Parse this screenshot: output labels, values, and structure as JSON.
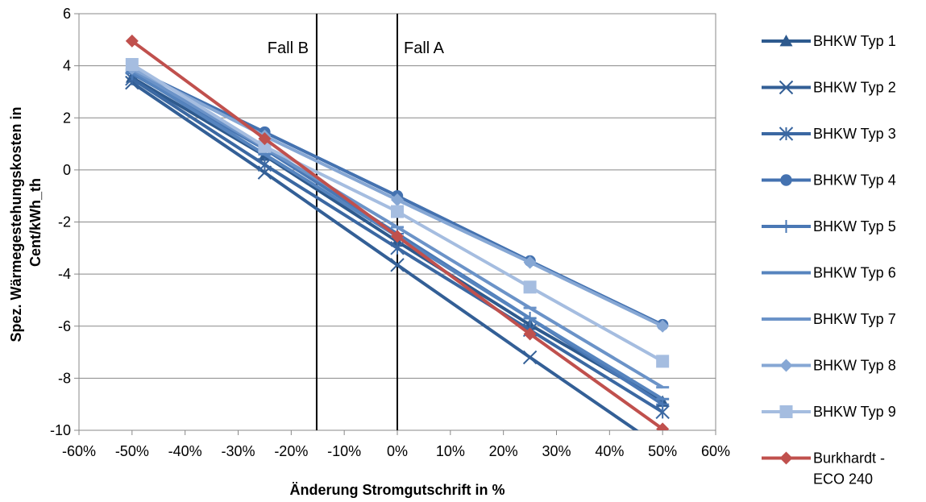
{
  "chart_data": {
    "type": "line",
    "title": "",
    "xlabel": "Änderung Stromgutschrift in %",
    "ylabel_lines": [
      "Spez. Wärmegestehungskosten in",
      "Cent/kWh_th"
    ],
    "x_ticks": [
      "-60%",
      "-50%",
      "-40%",
      "-30%",
      "-20%",
      "-10%",
      "0%",
      "10%",
      "20%",
      "30%",
      "40%",
      "50%",
      "60%"
    ],
    "y_ticks": [
      "6",
      "4",
      "2",
      "0",
      "-2",
      "-4",
      "-6",
      "-8",
      "-10"
    ],
    "xlim": [
      -60,
      60
    ],
    "ylim": [
      -10,
      6
    ],
    "grid": "horizontal",
    "legend_position": "right",
    "x": [
      -50,
      -25,
      0,
      25,
      50
    ],
    "vlines": [
      {
        "x": -15.2,
        "label": "Fall B",
        "label_side": "left"
      },
      {
        "x": 0,
        "label": "Fall A",
        "label_side": "right"
      }
    ],
    "series": [
      {
        "name": "BHKW Typ 1",
        "marker": "triangle",
        "color": "#2E5A8E",
        "values": [
          3.55,
          0.55,
          -2.75,
          -5.95,
          -8.9
        ]
      },
      {
        "name": "BHKW Typ 2",
        "marker": "x",
        "color": "#335F96",
        "values": [
          3.35,
          -0.1,
          -3.65,
          -7.2,
          -10.7
        ]
      },
      {
        "name": "BHKW Typ 3",
        "marker": "star",
        "color": "#3B68A2",
        "values": [
          3.5,
          0.2,
          -3.0,
          -6.15,
          -9.3
        ]
      },
      {
        "name": "BHKW Typ 4",
        "marker": "circle",
        "color": "#4472B0",
        "values": [
          3.9,
          1.45,
          -1.0,
          -3.5,
          -5.95
        ]
      },
      {
        "name": "BHKW Typ 5",
        "marker": "plus",
        "color": "#4A78B5",
        "values": [
          3.7,
          0.8,
          -2.45,
          -5.7,
          -9.0
        ]
      },
      {
        "name": "BHKW Typ 6",
        "marker": "dash",
        "color": "#5684BE",
        "values": [
          3.75,
          0.6,
          -2.55,
          -5.7,
          -8.8
        ]
      },
      {
        "name": "BHKW Typ 7",
        "marker": "dash",
        "color": "#6B93C8",
        "values": [
          3.85,
          0.85,
          -2.2,
          -5.3,
          -8.35
        ]
      },
      {
        "name": "BHKW Typ 8",
        "marker": "diamond",
        "color": "#86A7D4",
        "values": [
          3.9,
          1.3,
          -1.15,
          -3.55,
          -6.0
        ]
      },
      {
        "name": "BHKW Typ 9",
        "marker": "square",
        "color": "#A5BDE0",
        "values": [
          4.05,
          0.9,
          -1.6,
          -4.5,
          -7.35
        ]
      },
      {
        "name": "Burkhardt - ECO 240",
        "legend_lines": [
          "Burkhardt -",
          "ECO 240"
        ],
        "marker": "diamond",
        "color": "#C0504D",
        "values": [
          4.95,
          1.2,
          -2.55,
          -6.3,
          -9.95
        ]
      }
    ]
  }
}
